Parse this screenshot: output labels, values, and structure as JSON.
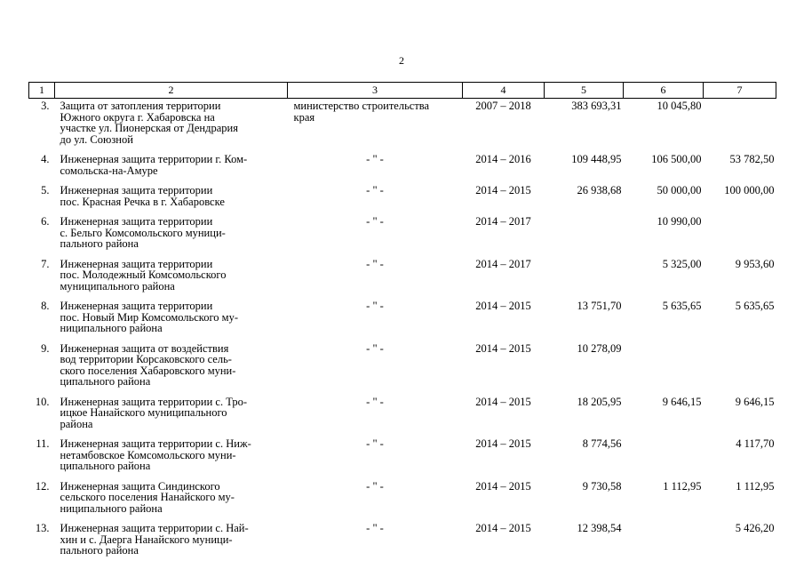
{
  "page": {
    "number": "2"
  },
  "table": {
    "headers": [
      "1",
      "2",
      "3",
      "4",
      "5",
      "6",
      "7"
    ],
    "rows": [
      {
        "num": "3.",
        "name_lines": [
          "Защита от затопления территории",
          "Южного округа г. Хабаровска на",
          "участке ул. Пионерская от Дендрария",
          "до ул. Союзной"
        ],
        "exec_lines": [
          "министерство строительства",
          "края"
        ],
        "period": "2007 – 2018",
        "v5": "383 693,31",
        "v6": "10 045,80",
        "v7": ""
      },
      {
        "num": "4.",
        "name_lines": [
          "Инженерная защита территории г. Ком-",
          "сомольска-на-Амуре"
        ],
        "exec_lines": [
          "- \" -"
        ],
        "period": "2014 – 2016",
        "v5": "109 448,95",
        "v6": "106 500,00",
        "v7": "53 782,50"
      },
      {
        "num": "5.",
        "name_lines": [
          "Инженерная защита территории",
          "пос. Красная Речка в г. Хабаровске"
        ],
        "exec_lines": [
          "- \" -"
        ],
        "period": "2014 – 2015",
        "v5": "26 938,68",
        "v6": "50 000,00",
        "v7": "100 000,00"
      },
      {
        "num": "6.",
        "name_lines": [
          "Инженерная защита территории",
          "с. Бельго Комсомольского муници-",
          "пального района"
        ],
        "exec_lines": [
          "- \" -"
        ],
        "period": "2014 – 2017",
        "v5": "",
        "v6": "10 990,00",
        "v7": ""
      },
      {
        "num": "7.",
        "name_lines": [
          "Инженерная защита территории",
          "пос. Молодежный Комсомольского",
          "муниципального района"
        ],
        "exec_lines": [
          "- \" -"
        ],
        "period": "2014 – 2017",
        "v5": "",
        "v6": "5 325,00",
        "v7": "9 953,60"
      },
      {
        "num": "8.",
        "name_lines": [
          "Инженерная защита территории",
          "пос. Новый Мир Комсомольского му-",
          "ниципального района"
        ],
        "exec_lines": [
          "- \" -"
        ],
        "period": "2014 – 2015",
        "v5": "13 751,70",
        "v6": "5 635,65",
        "v7": "5 635,65"
      },
      {
        "num": "9.",
        "name_lines": [
          "Инженерная защита от воздействия",
          "вод территории Корсаковского сель-",
          "ского поселения Хабаровского муни-",
          "ципального района"
        ],
        "exec_lines": [
          "- \" -"
        ],
        "period": "2014 – 2015",
        "v5": "10 278,09",
        "v6": "",
        "v7": ""
      },
      {
        "num": "10.",
        "name_lines": [
          "Инженерная защита территории с. Тро-",
          "ицкое Нанайского муниципального",
          "района"
        ],
        "exec_lines": [
          "- \" -"
        ],
        "period": "2014 – 2015",
        "v5": "18 205,95",
        "v6": "9 646,15",
        "v7": "9 646,15"
      },
      {
        "num": "11.",
        "name_lines": [
          "Инженерная защита территории с. Ниж-",
          "нетамбовское Комсомольского муни-",
          "ципального района"
        ],
        "exec_lines": [
          "- \" -"
        ],
        "period": "2014 – 2015",
        "v5": "8 774,56",
        "v6": "",
        "v7": "4 117,70"
      },
      {
        "num": "12.",
        "name_lines": [
          "Инженерная защита Синдинского",
          "сельского поселения Нанайского му-",
          "ниципального района"
        ],
        "exec_lines": [
          "- \" -"
        ],
        "period": "2014 – 2015",
        "v5": "9 730,58",
        "v6": "1 112,95",
        "v7": "1 112,95"
      },
      {
        "num": "13.",
        "name_lines": [
          "Инженерная защита территории с. Най-",
          "хин и с. Даерга Нанайского муници-",
          "пального района"
        ],
        "exec_lines": [
          "- \" -"
        ],
        "period": "2014 – 2015",
        "v5": "12 398,54",
        "v6": "",
        "v7": "5 426,20"
      }
    ]
  }
}
